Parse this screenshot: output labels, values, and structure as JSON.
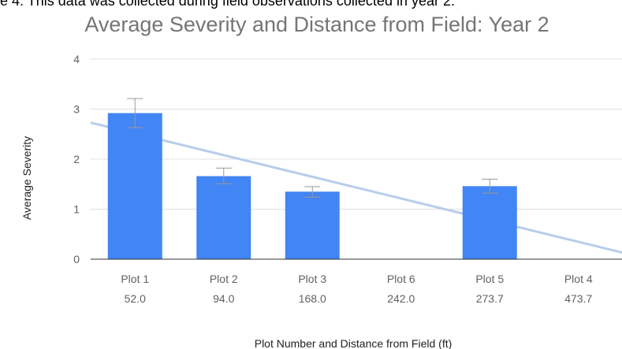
{
  "caption_fragment": "e 4: This data was collected during field observations collected in year 2.",
  "chart_data": {
    "type": "bar",
    "title": "Average Severity and Distance from Field: Year 2",
    "xlabel": "Plot Number and Distance from Field (ft)",
    "ylabel": "Average Severity",
    "ylim": [
      0,
      4
    ],
    "yticks": [
      "0",
      "1",
      "2",
      "3",
      "4"
    ],
    "grid": true,
    "legend": "none",
    "categories": [
      {
        "plot": "Plot 1",
        "distance": "52.0"
      },
      {
        "plot": "Plot 2",
        "distance": "94.0"
      },
      {
        "plot": "Plot 3",
        "distance": "168.0"
      },
      {
        "plot": "Plot 6",
        "distance": "242.0"
      },
      {
        "plot": "Plot 5",
        "distance": "273.7"
      },
      {
        "plot": "Plot 4",
        "distance": "473.7"
      }
    ],
    "values": [
      2.92,
      1.66,
      1.35,
      0,
      1.46,
      0
    ],
    "error_bars": [
      [
        2.63,
        3.21
      ],
      [
        1.51,
        1.82
      ],
      [
        1.24,
        1.45
      ],
      null,
      [
        1.32,
        1.6
      ],
      null
    ],
    "trendline": {
      "x_start": 0,
      "y_start": 2.73,
      "x_end": 6.3,
      "y_end": 0
    },
    "colors": {
      "bar": "#4285f4",
      "trendline": "#b7cdea",
      "error_bar": "#999999",
      "grid": "#e0e0e0",
      "baseline": "#333333"
    }
  }
}
